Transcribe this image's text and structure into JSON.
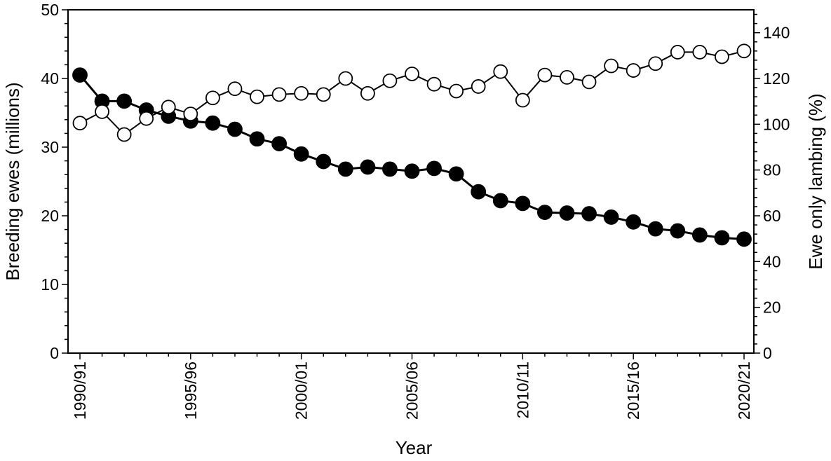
{
  "chart_data": {
    "type": "line",
    "xlabel": "Year",
    "categories": [
      "1990/91",
      "1991/92",
      "1992/93",
      "1993/94",
      "1994/95",
      "1995/96",
      "1996/97",
      "1997/98",
      "1998/99",
      "1999/00",
      "2000/01",
      "2001/02",
      "2002/03",
      "2003/04",
      "2004/05",
      "2005/06",
      "2006/07",
      "2007/08",
      "2008/09",
      "2009/10",
      "2010/11",
      "2011/12",
      "2012/13",
      "2013/14",
      "2014/15",
      "2015/16",
      "2016/17",
      "2017/18",
      "2018/19",
      "2019/20",
      "2020/21"
    ],
    "x_tick_labels": [
      "1990/91",
      "1995/96",
      "2000/01",
      "2005/06",
      "2010/11",
      "2015/16",
      "2020/21"
    ],
    "y_left": {
      "label": "Breeding ewes (millions)",
      "ylim": [
        0,
        50
      ],
      "ticks": [
        "0",
        "10",
        "20",
        "30",
        "40",
        "50"
      ]
    },
    "y_right": {
      "label": "Ewe only lambing (%)",
      "ylim": [
        0,
        150
      ],
      "ticks": [
        "0",
        "20",
        "40",
        "60",
        "80",
        "100",
        "120",
        "140"
      ]
    },
    "series": [
      {
        "axis": "left",
        "marker": "filled",
        "color": "#000000",
        "values": [
          40.5,
          36.7,
          36.7,
          35.4,
          34.5,
          33.8,
          33.5,
          32.6,
          31.2,
          30.5,
          29.0,
          27.9,
          26.8,
          27.1,
          26.8,
          26.5,
          26.9,
          26.1,
          23.5,
          22.2,
          21.8,
          20.5,
          20.4,
          20.3,
          19.8,
          19.1,
          18.1,
          17.8,
          17.2,
          16.8,
          16.6
        ]
      },
      {
        "axis": "right",
        "marker": "open",
        "color": "#000000",
        "values": [
          100.5,
          105.5,
          95.5,
          102.5,
          107.5,
          104.5,
          111.5,
          115.5,
          112.0,
          113.0,
          113.5,
          113.0,
          120.0,
          113.5,
          119.0,
          122.0,
          117.5,
          114.5,
          116.5,
          123.0,
          110.5,
          121.5,
          120.5,
          118.5,
          125.5,
          123.5,
          126.5,
          131.5,
          131.5,
          129.5,
          132.0
        ]
      }
    ],
    "grid": false,
    "legend": "none"
  }
}
